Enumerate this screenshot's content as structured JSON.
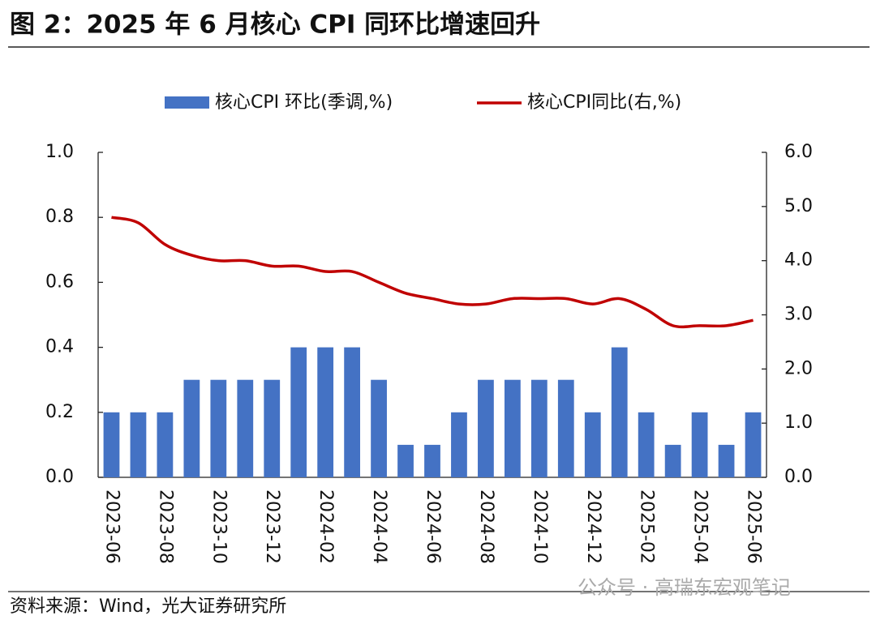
{
  "chart_data": {
    "type": "bar_line",
    "title": "图 2：2025 年 6 月核心 CPI 同环比增速回升",
    "source": "资料来源：Wind，光大证券研究所",
    "watermark": "公众号 · 高瑞东宏观笔记",
    "categories": [
      "2023-06",
      null,
      "2023-08",
      null,
      "2023-10",
      null,
      "2023-12",
      null,
      "2024-02",
      null,
      "2024-04",
      null,
      "2024-06",
      null,
      "2024-08",
      null,
      "2024-10",
      null,
      "2024-12",
      null,
      "2025-02",
      null,
      "2025-04",
      null,
      "2025-06"
    ],
    "series": [
      {
        "name": "核心CPI 环比(季调,%)",
        "type": "bar",
        "color": "#4472c4",
        "values": [
          0.2,
          0.2,
          0.2,
          0.3,
          0.3,
          0.3,
          0.3,
          0.4,
          0.4,
          0.4,
          0.3,
          0.1,
          0.1,
          0.2,
          0.3,
          0.3,
          0.3,
          0.3,
          0.2,
          0.4,
          0.2,
          0.1,
          0.2,
          0.1,
          0.2
        ]
      },
      {
        "name": "核心CPI同比(右,%)",
        "type": "line",
        "axis": "y2",
        "color": "#c00000",
        "values": [
          4.8,
          4.7,
          4.3,
          4.1,
          4.0,
          4.0,
          3.9,
          3.9,
          3.8,
          3.8,
          3.6,
          3.4,
          3.3,
          3.2,
          3.2,
          3.3,
          3.3,
          3.3,
          3.2,
          3.3,
          3.1,
          2.8,
          2.8,
          2.8,
          2.9
        ]
      }
    ],
    "ylim": [
      0,
      1.0
    ],
    "yticks": [
      {
        "value": 0,
        "label": "0.0"
      },
      0.2,
      0.4,
      0.6,
      0.8,
      {
        "value": 1.0,
        "label": "1.0"
      }
    ],
    "y2lim": [
      0,
      6.0
    ],
    "y2ticks": [
      {
        "value": 0,
        "label": "0.0"
      },
      {
        "value": 1,
        "label": "1.0"
      },
      {
        "value": 2,
        "label": "2.0"
      },
      {
        "value": 3,
        "label": "3.0"
      },
      {
        "value": 4,
        "label": "4.0"
      },
      {
        "value": 5,
        "label": "5.0"
      },
      {
        "value": 6,
        "label": "6.0"
      }
    ],
    "legend": "top",
    "grid": false
  }
}
